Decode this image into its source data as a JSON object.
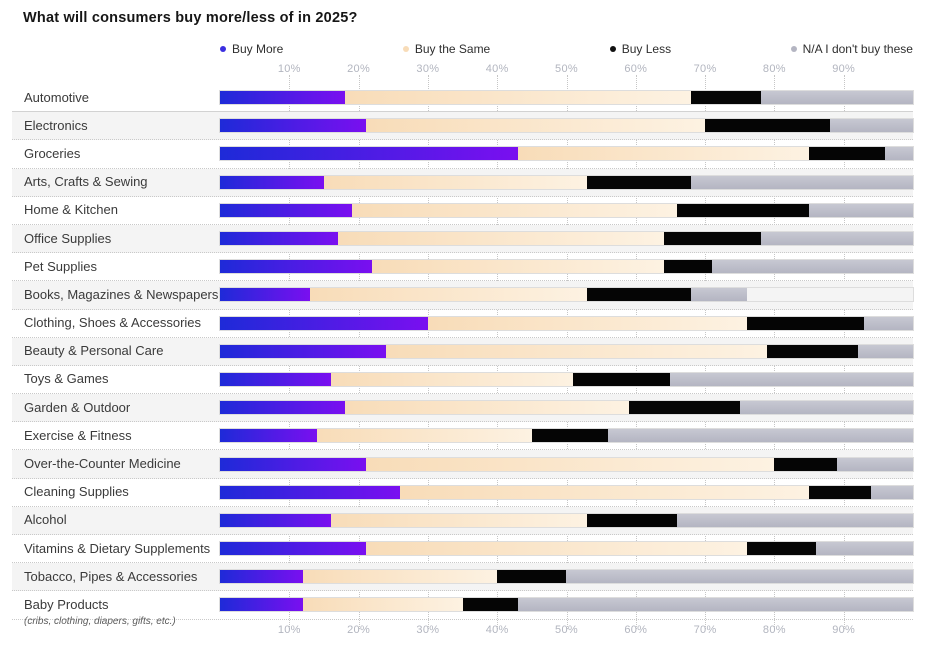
{
  "title": "What will consumers buy more/less of in 2025?",
  "legend": [
    {
      "label": "Buy More",
      "color": "#3b2fe0"
    },
    {
      "label": "Buy the Same",
      "color": "#f8dcb8"
    },
    {
      "label": "Buy Less",
      "color": "#111111"
    },
    {
      "label": "N/A I don't buy these",
      "color": "#b4b5c2"
    }
  ],
  "axis": {
    "tick_labels": [
      "10%",
      "20%",
      "30%",
      "40%",
      "50%",
      "60%",
      "70%",
      "80%",
      "90%"
    ],
    "tick_values": [
      10,
      20,
      30,
      40,
      50,
      60,
      70,
      80,
      90
    ]
  },
  "footnote": {
    "text": "(cribs, clothing, diapers, gifts, etc.)",
    "category": "Baby Products"
  },
  "colors": {
    "buy_more_start": "#1e2ad8",
    "buy_more_end": "#7a0ff0",
    "buy_same_start": "#f8dcb8",
    "buy_same_end": "#fdf2e2",
    "buy_less": "#050505",
    "na_top": "#c7c8d2",
    "na_bottom": "#b4b5c2",
    "row_alt": "#f4f4f4",
    "axis_text": "#b2b5bf"
  },
  "chart_data": {
    "type": "bar",
    "orientation": "horizontal",
    "stacked": true,
    "unit": "%",
    "title": "What will consumers buy more/less of in 2025?",
    "xlim": [
      0,
      100
    ],
    "grid": "vertical-dotted",
    "legend_position": "top",
    "categories": [
      "Automotive",
      "Electronics",
      "Groceries",
      "Arts, Crafts & Sewing",
      "Home & Kitchen",
      "Office Supplies",
      "Pet Supplies",
      "Books, Magazines & Newspapers",
      "Clothing, Shoes & Accessories",
      "Beauty & Personal Care",
      "Toys & Games",
      "Garden & Outdoor",
      "Exercise & Fitness",
      "Over-the-Counter Medicine",
      "Cleaning Supplies",
      "Alcohol",
      "Vitamins & Dietary Supplements",
      "Tobacco, Pipes & Accessories",
      "Baby Products"
    ],
    "series": [
      {
        "name": "Buy More",
        "values": [
          18,
          21,
          43,
          15,
          19,
          17,
          22,
          13,
          30,
          24,
          16,
          18,
          14,
          21,
          26,
          16,
          21,
          12,
          12
        ]
      },
      {
        "name": "Buy the Same",
        "values": [
          50,
          49,
          42,
          38,
          47,
          47,
          42,
          40,
          46,
          55,
          35,
          41,
          31,
          59,
          59,
          37,
          55,
          28,
          23
        ]
      },
      {
        "name": "Buy Less",
        "values": [
          10,
          18,
          11,
          15,
          19,
          14,
          7,
          15,
          17,
          13,
          14,
          16,
          11,
          9,
          9,
          13,
          10,
          10,
          8
        ]
      },
      {
        "name": "N/A I don't buy these",
        "values": [
          22,
          12,
          4,
          32,
          15,
          22,
          29,
          8,
          7,
          8,
          35,
          25,
          44,
          11,
          6,
          34,
          14,
          50,
          57
        ]
      }
    ]
  }
}
